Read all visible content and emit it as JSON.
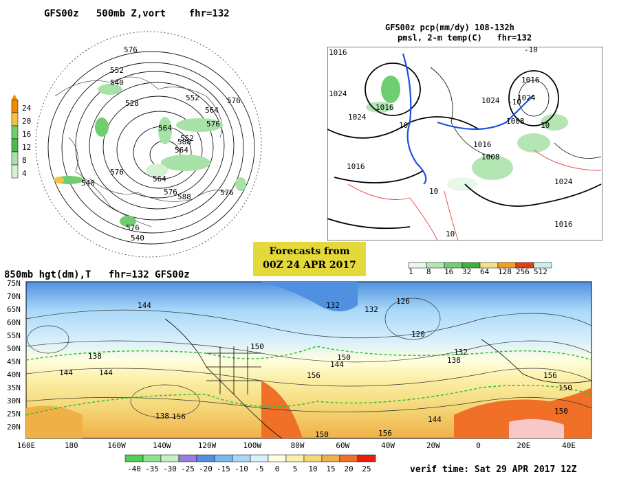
{
  "panel_500mb": {
    "title": "GFS00z   500mb Z,vort    fhr=132",
    "colorbar": {
      "ticks": [
        "24",
        "20",
        "16",
        "12",
        "8",
        "4"
      ],
      "colors": [
        "#f08a00",
        "#f4c040",
        "#6fce6f",
        "#4fb84f",
        "#a9e2a9",
        "#d6f2d6"
      ]
    },
    "contour_labels": [
      "576",
      "552",
      "540",
      "528",
      "552",
      "564",
      "576",
      "588",
      "564",
      "576",
      "540",
      "564",
      "576",
      "588",
      "576",
      "576",
      "540",
      "552",
      "564",
      "576"
    ]
  },
  "panel_precip": {
    "title_line1": "GFS00z pcp(mm/dy) 108-132h",
    "title_line2": "pmsl, 2-m temp(C)   fhr=132",
    "colorbar": {
      "ticks": [
        "1",
        "8",
        "16",
        "32",
        "64",
        "128",
        "256",
        "512"
      ],
      "colors": [
        "#e8f8e8",
        "#b4e6b4",
        "#6fce6f",
        "#40b040",
        "#f4e08a",
        "#f0a020",
        "#e04010",
        "#c8f0f0"
      ]
    },
    "isobar_labels": [
      "1016",
      "1024",
      "1016",
      "1024",
      "1016",
      "1008",
      "1016",
      "1024",
      "1008",
      "1016",
      "1024",
      "1016",
      "1024"
    ],
    "temp_labels": [
      "10",
      "-10",
      "-10",
      "10",
      "10",
      "10"
    ]
  },
  "banner": {
    "line1": "Forecasts from",
    "line2": "00Z 24 APR 2017"
  },
  "panel_850mb": {
    "title": "850mb hgt(dm),T   fhr=132 GFS00z",
    "lat_labels": [
      "75N",
      "70N",
      "65N",
      "60N",
      "55N",
      "50N",
      "45N",
      "40N",
      "35N",
      "30N",
      "25N",
      "20N"
    ],
    "lon_labels": [
      "160E",
      "180",
      "160W",
      "140W",
      "120W",
      "100W",
      "80W",
      "60W",
      "40W",
      "20W",
      "0",
      "20E",
      "40E"
    ],
    "height_labels": [
      "144",
      "132",
      "126",
      "132",
      "138",
      "120",
      "132",
      "138",
      "144",
      "150",
      "156",
      "144",
      "150",
      "156",
      "150",
      "150",
      "156",
      "144",
      "138",
      "144",
      "156",
      "150"
    ],
    "colorbar": {
      "ticks": [
        "-40",
        "-35",
        "-30",
        "-25",
        "-20",
        "-15",
        "-10",
        "-5",
        "0",
        "5",
        "10",
        "15",
        "20",
        "25"
      ],
      "colors": [
        "#50d050",
        "#8ee28e",
        "#c4f0c4",
        "#9a7de0",
        "#5090e0",
        "#78b8f0",
        "#a8d8f8",
        "#d8f0fc",
        "#ffffe0",
        "#fbf0a8",
        "#f4d878",
        "#f0b048",
        "#f07028",
        "#e82010"
      ]
    },
    "verif_time": "verif time: Sat 29 APR 2017 12Z"
  }
}
